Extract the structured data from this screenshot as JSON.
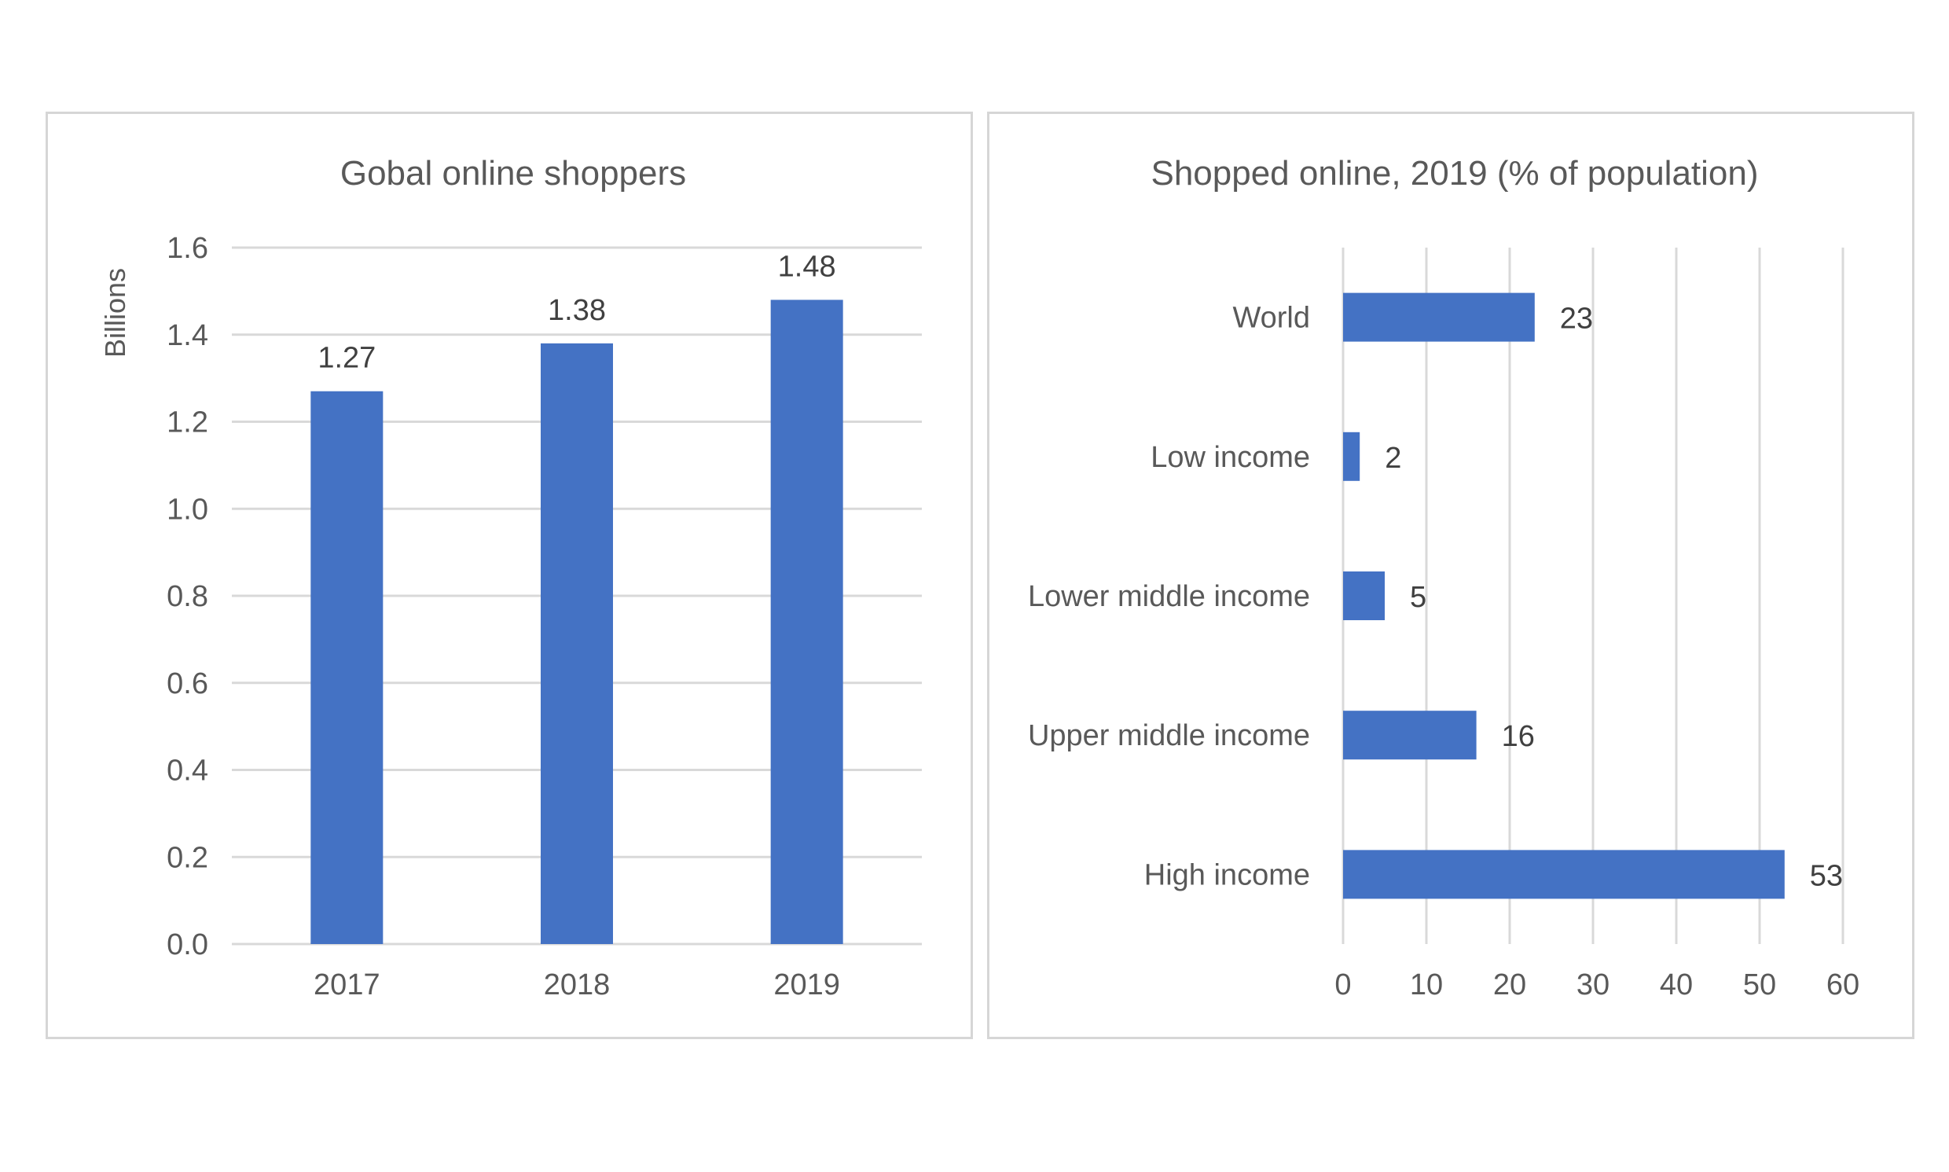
{
  "colors": {
    "bar": "#4472C4",
    "grid": "#d9d9d9",
    "text": "#595959"
  },
  "chart_data": [
    {
      "type": "bar",
      "title": "Gobal online shoppers",
      "ylabel": "Billions",
      "xlabel": "",
      "categories": [
        "2017",
        "2018",
        "2019"
      ],
      "values": [
        1.27,
        1.38,
        1.48
      ],
      "value_labels": [
        "1.27",
        "1.38",
        "1.48"
      ],
      "ylim": [
        0,
        1.6
      ],
      "yticks": [
        0.0,
        0.2,
        0.4,
        0.6,
        0.8,
        1.0,
        1.2,
        1.4,
        1.6
      ],
      "ytick_labels": [
        "0.0",
        "0.2",
        "0.4",
        "0.6",
        "0.8",
        "1.0",
        "1.2",
        "1.4",
        "1.6"
      ],
      "grid": "horizontal",
      "orientation": "vertical"
    },
    {
      "type": "bar",
      "title": "Shopped online, 2019 (% of population)",
      "xlabel": "",
      "ylabel": "",
      "categories": [
        "World",
        "Low income",
        "Lower middle income",
        "Upper middle income",
        "High income"
      ],
      "values": [
        23,
        2,
        5,
        16,
        53
      ],
      "value_labels": [
        "23",
        "2",
        "5",
        "16",
        "53"
      ],
      "xlim": [
        0,
        60
      ],
      "xticks": [
        0,
        10,
        20,
        30,
        40,
        50,
        60
      ],
      "xtick_labels": [
        "0",
        "10",
        "20",
        "30",
        "40",
        "50",
        "60"
      ],
      "grid": "vertical",
      "orientation": "horizontal"
    }
  ]
}
